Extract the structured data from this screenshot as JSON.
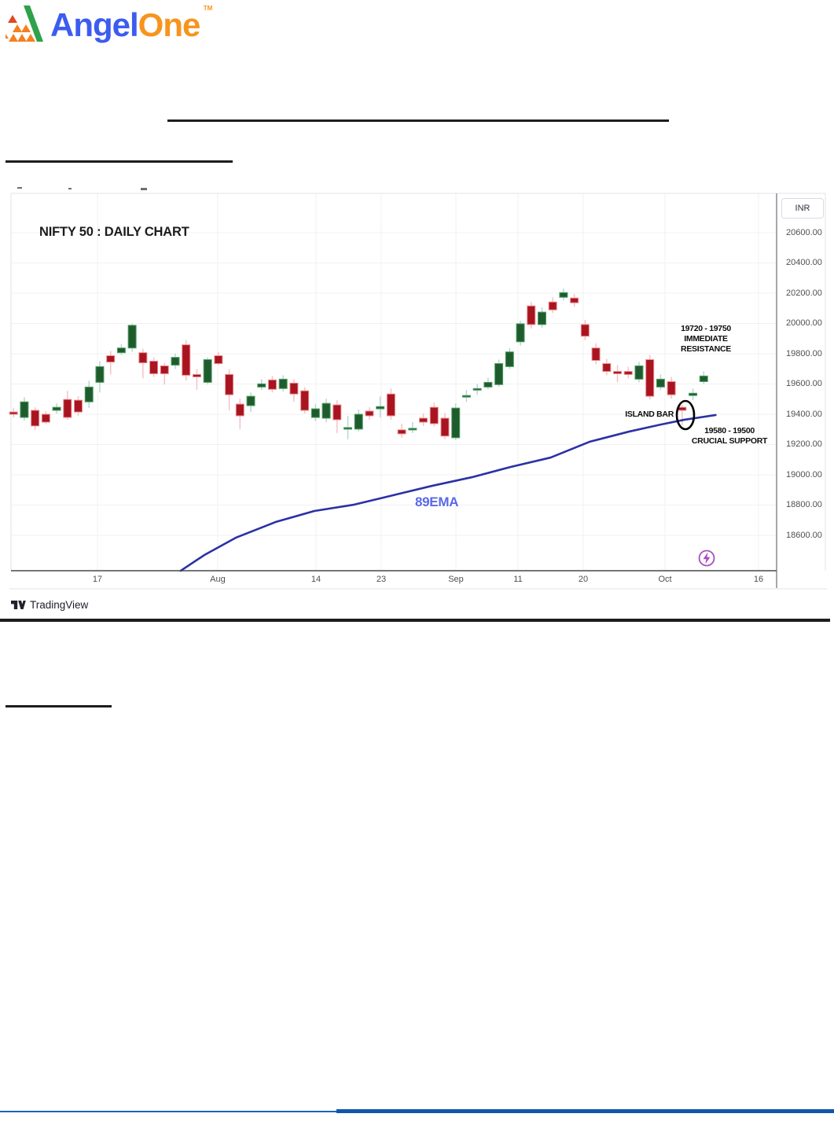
{
  "header": {
    "brand_angel": "Angel",
    "brand_one": "One",
    "brand_tm": "TM"
  },
  "chart": {
    "title": "NIFTY 50 : DAILY CHART",
    "currency_button": "INR",
    "ema_label": "89EMA",
    "attribution": "TradingView",
    "annotations": {
      "resistance_line1": "19720 - 19750",
      "resistance_line2": "IMMEDIATE RESISTANCE",
      "island_bar": "ISLAND BAR",
      "support_line1": "19580 - 19500",
      "support_line2": "CRUCIAL SUPPORT"
    },
    "colors": {
      "candle_up_fill": "#1f5c2d",
      "candle_up_border": "#4f9e63",
      "candle_up_wick": "#b7d6da",
      "candle_down_fill": "#a8141f",
      "candle_down_border": "#e98a8e",
      "candle_down_wick": "#f5c2c7",
      "ema_line": "#2b31a5",
      "grid": "#f1f1f1",
      "plot_border": "#e3e3e3",
      "axis_line": "#46484f",
      "annotation_ellipse": "#000000",
      "flash_icon": "#a64cc0"
    },
    "chart_data": {
      "type": "candlestick",
      "title": "NIFTY 50 : DAILY CHART",
      "currency": "INR",
      "grid": true,
      "legend_position": "none",
      "ylim": [
        18366,
        20860
      ],
      "y_ticks": [
        20600,
        20400,
        20200,
        20000,
        19800,
        19600,
        19400,
        19200,
        19000,
        18800,
        18600
      ],
      "y_tick_labels": [
        "20600.00",
        "20400.00",
        "20200.00",
        "20000.00",
        "19800.00",
        "19600.00",
        "19400.00",
        "19200.00",
        "19000.00",
        "18800.00",
        "18600.00"
      ],
      "x_ticks": [
        {
          "label": "17",
          "i": 7.78
        },
        {
          "label": "Aug",
          "i": 18.93
        },
        {
          "label": "14",
          "i": 28.05
        },
        {
          "label": "23",
          "i": 34.1
        },
        {
          "label": "Sep",
          "i": 41.02
        },
        {
          "label": "11",
          "i": 46.78
        },
        {
          "label": "20",
          "i": 52.83
        },
        {
          "label": "Oct",
          "i": 60.41
        },
        {
          "label": "16",
          "i": 69.08
        }
      ],
      "island_bar_index": 62,
      "candles": [
        [
          19415,
          19441,
          19379,
          19400
        ],
        [
          19379,
          19513,
          19359,
          19482
        ],
        [
          19426,
          19446,
          19297,
          19323
        ],
        [
          19400,
          19421,
          19333,
          19348
        ],
        [
          19426,
          19472,
          19405,
          19446
        ],
        [
          19498,
          19555,
          19364,
          19379
        ],
        [
          19493,
          19519,
          19390,
          19415
        ],
        [
          19482,
          19622,
          19441,
          19580
        ],
        [
          19611,
          19751,
          19544,
          19715
        ],
        [
          19787,
          19818,
          19663,
          19745
        ],
        [
          19807,
          19864,
          19792,
          19838
        ],
        [
          19838,
          19998,
          19812,
          19988
        ],
        [
          19807,
          19833,
          19637,
          19740
        ],
        [
          19751,
          19776,
          19647,
          19668
        ],
        [
          19720,
          19740,
          19596,
          19668
        ],
        [
          19725,
          19802,
          19699,
          19776
        ],
        [
          19859,
          19890,
          19622,
          19658
        ],
        [
          19663,
          19699,
          19560,
          19647
        ],
        [
          19611,
          19776,
          19596,
          19761
        ],
        [
          19787,
          19812,
          19725,
          19735
        ],
        [
          19663,
          19699,
          19426,
          19529
        ],
        [
          19467,
          19503,
          19302,
          19390
        ],
        [
          19457,
          19544,
          19415,
          19519
        ],
        [
          19580,
          19632,
          19560,
          19601
        ],
        [
          19627,
          19653,
          19544,
          19565
        ],
        [
          19570,
          19658,
          19550,
          19632
        ],
        [
          19606,
          19632,
          19482,
          19534
        ],
        [
          19555,
          19580,
          19405,
          19426
        ],
        [
          19379,
          19467,
          19354,
          19436
        ],
        [
          19374,
          19503,
          19348,
          19472
        ],
        [
          19462,
          19493,
          19276,
          19364
        ],
        [
          19307,
          19390,
          19235,
          19312
        ],
        [
          19302,
          19431,
          19287,
          19400
        ],
        [
          19421,
          19446,
          19364,
          19390
        ],
        [
          19436,
          19519,
          19379,
          19451
        ],
        [
          19534,
          19570,
          19364,
          19390
        ],
        [
          19297,
          19338,
          19245,
          19271
        ],
        [
          19302,
          19348,
          19276,
          19307
        ],
        [
          19374,
          19405,
          19323,
          19348
        ],
        [
          19446,
          19477,
          19318,
          19338
        ],
        [
          19374,
          19410,
          19235,
          19256
        ],
        [
          19245,
          19472,
          19230,
          19441
        ],
        [
          19519,
          19560,
          19482,
          19524
        ],
        [
          19565,
          19601,
          19529,
          19570
        ],
        [
          19580,
          19642,
          19565,
          19611
        ],
        [
          19596,
          19761,
          19580,
          19735
        ],
        [
          19715,
          19838,
          19700,
          19812
        ],
        [
          19879,
          20019,
          19854,
          19998
        ],
        [
          20116,
          20142,
          19967,
          19993
        ],
        [
          19993,
          20106,
          19972,
          20075
        ],
        [
          20142,
          20173,
          20070,
          20090
        ],
        [
          20173,
          20230,
          20152,
          20204
        ],
        [
          20168,
          20194,
          20111,
          20137
        ],
        [
          19993,
          20024,
          19890,
          19916
        ],
        [
          19838,
          19869,
          19730,
          19756
        ],
        [
          19735,
          19766,
          19658,
          19683
        ],
        [
          19683,
          19725,
          19611,
          19668
        ],
        [
          19683,
          19714,
          19637,
          19663
        ],
        [
          19632,
          19746,
          19611,
          19720
        ],
        [
          19761,
          19792,
          19498,
          19519
        ],
        [
          19580,
          19663,
          19560,
          19632
        ],
        [
          19616,
          19647,
          19503,
          19529
        ],
        [
          19446,
          19462,
          19328,
          19426
        ],
        [
          19524,
          19570,
          19493,
          19539
        ],
        [
          19616,
          19684,
          19601,
          19653
        ]
      ],
      "ema": {
        "name": "89EMA",
        "points": [
          [
            15.5,
            18366
          ],
          [
            17.7,
            18470
          ],
          [
            20.6,
            18584
          ],
          [
            24.3,
            18688
          ],
          [
            27.9,
            18761
          ],
          [
            31.6,
            18803
          ],
          [
            35.2,
            18865
          ],
          [
            38.8,
            18927
          ],
          [
            42.5,
            18984
          ],
          [
            46.1,
            19052
          ],
          [
            49.8,
            19114
          ],
          [
            53.4,
            19218
          ],
          [
            57.1,
            19286
          ],
          [
            60.0,
            19332
          ],
          [
            62.2,
            19364
          ],
          [
            65.1,
            19395
          ]
        ]
      }
    }
  }
}
